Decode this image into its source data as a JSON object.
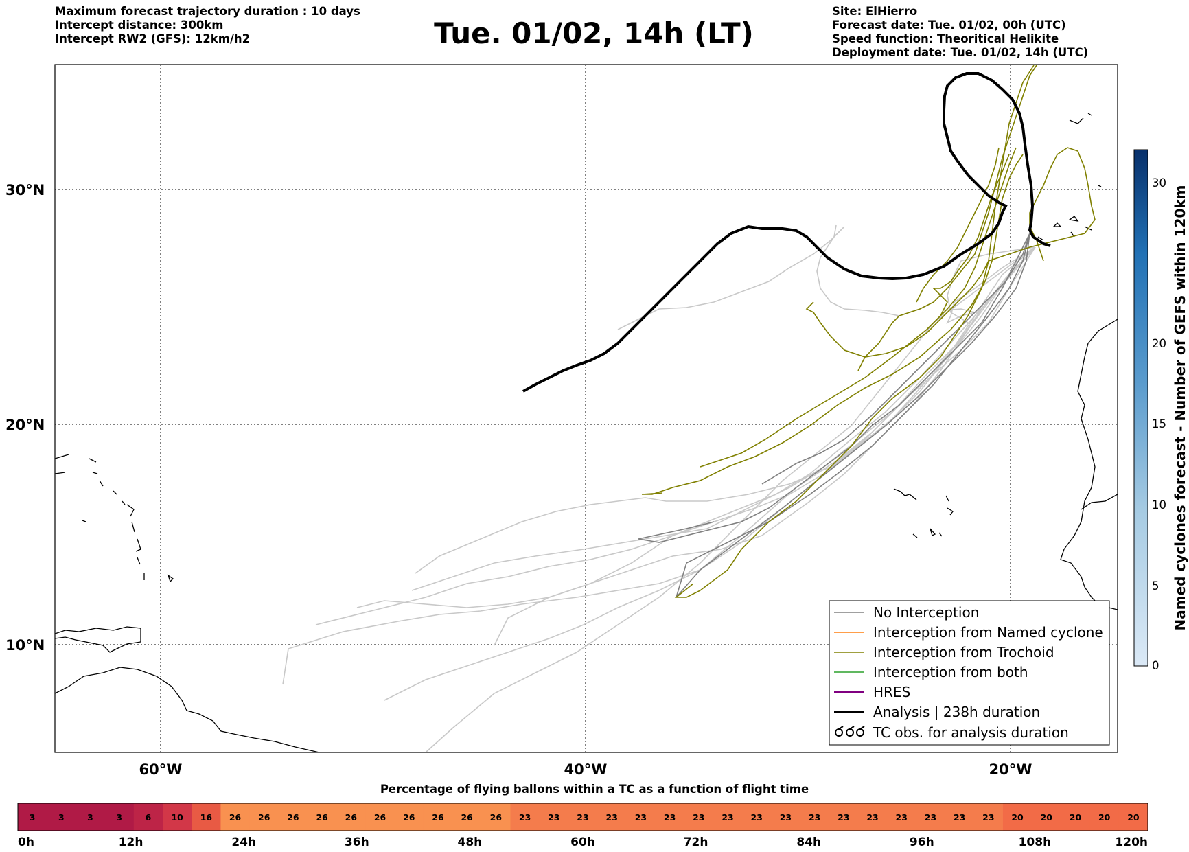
{
  "header_left": [
    "Maximum forecast trajectory duration : 10 days",
    "Intercept distance: 300km",
    "Intercept RW2 (GFS):  12km/h2"
  ],
  "title": "Tue. 01/02, 14h (LT)",
  "header_right": [
    "Site: ElHierro",
    "Forecast date: Tue. 01/02, 00h (UTC)",
    "Speed function: Theoritical Helikite",
    "Deployment date: Tue. 01/02, 14h (UTC)"
  ],
  "map": {
    "lon_labels": [
      "60°W",
      "40°W",
      "20°W"
    ],
    "lat_labels": [
      "30°N",
      "20°N",
      "10°N"
    ],
    "grid": true
  },
  "legend": {
    "placement": "lower-right",
    "items": [
      {
        "label": "No Interception",
        "color": "#808080"
      },
      {
        "label": "Interception from Named cyclone",
        "color": "#ff7f0e"
      },
      {
        "label": "Interception from Trochoid",
        "color": "#808000"
      },
      {
        "label": "Interception from both",
        "color": "#2ca02c"
      },
      {
        "label": "HRES",
        "color": "#800080"
      },
      {
        "label": "Analysis | 238h duration",
        "color": "#000000"
      },
      {
        "label": "TC obs. for analysis duration",
        "icon": "cyclone-symbol-icon"
      }
    ]
  },
  "colorbar": {
    "label": "Named cyclones forecast - Number of GEFS within 120km",
    "ticks": [
      "0",
      "5",
      "10",
      "15",
      "20",
      "30"
    ]
  },
  "strip": {
    "title": "Percentage of flying ballons within a TC as a function of flight time",
    "values": [
      3,
      3,
      3,
      3,
      6,
      10,
      16,
      26,
      26,
      26,
      26,
      26,
      26,
      26,
      26,
      26,
      26,
      23,
      23,
      23,
      23,
      23,
      23,
      23,
      23,
      23,
      23,
      23,
      23,
      23,
      23,
      23,
      23,
      23,
      20,
      20,
      20,
      20,
      20
    ],
    "ticks": [
      "0h",
      "12h",
      "24h",
      "36h",
      "48h",
      "60h",
      "72h",
      "84h",
      "96h",
      "108h",
      "120h"
    ]
  }
}
